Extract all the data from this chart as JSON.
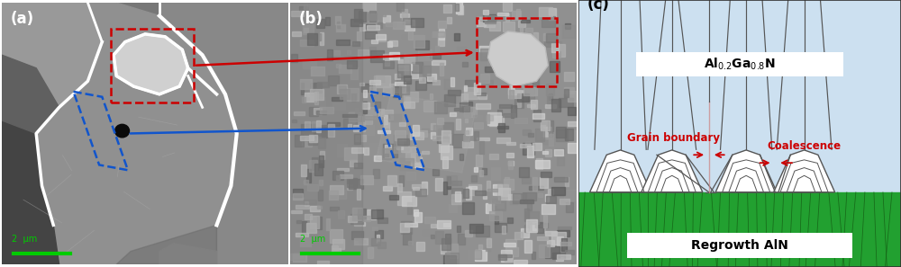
{
  "fig_width": 10.0,
  "fig_height": 2.97,
  "dpi": 100,
  "panel_a_label": "(a)",
  "panel_b_label": "(b)",
  "panel_c_label": "(c)",
  "scale_bar_color": "#00cc00",
  "scale_bar_text": "2  μm",
  "bg_light_blue": "#cce0f0",
  "bg_green": "#22a030",
  "label_red": "#cc0000",
  "grain_boundary_label": "Grain boundary",
  "coalescence_label": "Coalescence",
  "regrowth_label": "Regrowth AlN",
  "red_dash_color": "#cc0000",
  "blue_dash_color": "#1155cc",
  "arrow_red": "#cc0000",
  "arrow_blue": "#1155cc",
  "dark_line": "#555555",
  "green_line": "#156015",
  "sem_bg": "#787878",
  "sem_grain1": "#aaaaaa",
  "sem_grain2": "#888888",
  "sem_dark": "#333333",
  "cl_bg": "#909090"
}
